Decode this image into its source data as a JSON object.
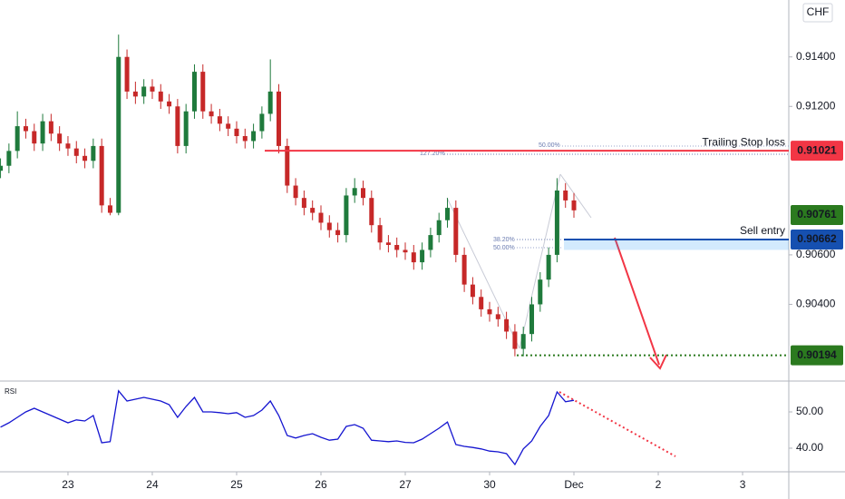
{
  "chart_data": {
    "type": "candlestick",
    "currency": "CHF",
    "up_color": "#1f7a3c",
    "down_color": "#c62828",
    "xlim": [
      -0.806,
      8.548
    ],
    "xticks": [
      {
        "value": 0,
        "label": "23"
      },
      {
        "value": 1,
        "label": "24"
      },
      {
        "value": 2,
        "label": "25"
      },
      {
        "value": 3,
        "label": "26"
      },
      {
        "value": 4,
        "label": "27"
      },
      {
        "value": 5,
        "label": "30"
      },
      {
        "value": 6,
        "label": "Dec"
      },
      {
        "value": 7,
        "label": "2"
      },
      {
        "value": 8,
        "label": "3"
      }
    ],
    "ylim": [
      0.9009,
      0.9163
    ],
    "yticks": [
      {
        "value": 0.914,
        "label": "0.91400"
      },
      {
        "value": 0.912,
        "label": "0.91200"
      },
      {
        "value": 0.906,
        "label": "0.90600"
      },
      {
        "value": 0.904,
        "label": "0.90400"
      }
    ],
    "x": [
      -0.8,
      -0.7,
      -0.6,
      -0.5,
      -0.4,
      -0.3,
      -0.2,
      -0.1,
      0,
      0.1,
      0.2,
      0.3,
      0.4,
      0.5,
      0.6,
      0.7,
      0.8,
      0.9,
      1,
      1.1,
      1.2,
      1.3,
      1.4,
      1.5,
      1.6,
      1.7,
      1.8,
      1.9,
      2,
      2.1,
      2.2,
      2.3,
      2.4,
      2.5,
      2.6,
      2.7,
      2.8,
      2.9,
      3,
      3.1,
      3.2,
      3.3,
      3.4,
      3.5,
      3.6,
      3.7,
      3.8,
      3.9,
      4,
      4.1,
      4.2,
      4.3,
      4.4,
      4.5,
      4.6,
      4.7,
      4.8,
      4.9,
      5,
      5.1,
      5.2,
      5.3,
      5.4,
      5.5,
      5.6,
      5.7,
      5.8,
      5.9,
      6
    ],
    "open": [
      0.9094,
      0.9096,
      0.9102,
      0.9112,
      0.911,
      0.9105,
      0.9114,
      0.9109,
      0.9105,
      0.9103,
      0.91,
      0.9098,
      0.9104,
      0.908,
      0.9077,
      0.914,
      0.9126,
      0.9124,
      0.9128,
      0.9126,
      0.9122,
      0.912,
      0.9104,
      0.9118,
      0.9134,
      0.9118,
      0.9116,
      0.9113,
      0.9111,
      0.9108,
      0.9106,
      0.911,
      0.9117,
      0.9126,
      0.9104,
      0.9088,
      0.9083,
      0.9079,
      0.9077,
      0.9073,
      0.907,
      0.9068,
      0.9084,
      0.9087,
      0.9083,
      0.9072,
      0.9065,
      0.9064,
      0.9062,
      0.9061,
      0.9057,
      0.9062,
      0.9068,
      0.9074,
      0.9079,
      0.906,
      0.9048,
      0.9043,
      0.9038,
      0.9036,
      0.9034,
      0.9029,
      0.9022,
      0.9028,
      0.904,
      0.905,
      0.906,
      0.9086,
      0.9082
    ],
    "high": [
      0.9099,
      0.9105,
      0.9118,
      0.9115,
      0.9113,
      0.9117,
      0.9117,
      0.9112,
      0.9108,
      0.9106,
      0.9103,
      0.9107,
      0.9107,
      0.9083,
      0.9149,
      0.9143,
      0.913,
      0.9131,
      0.9131,
      0.9129,
      0.9125,
      0.9123,
      0.9121,
      0.9137,
      0.9137,
      0.9121,
      0.9119,
      0.9116,
      0.9114,
      0.9111,
      0.9113,
      0.912,
      0.9139,
      0.9129,
      0.9107,
      0.9091,
      0.9086,
      0.9082,
      0.908,
      0.9076,
      0.9073,
      0.9087,
      0.9091,
      0.909,
      0.9086,
      0.9075,
      0.9068,
      0.9067,
      0.9065,
      0.9064,
      0.9065,
      0.9071,
      0.9077,
      0.9083,
      0.9082,
      0.9063,
      0.9051,
      0.9046,
      0.9041,
      0.9039,
      0.9037,
      0.9032,
      0.9031,
      0.9043,
      0.9053,
      0.9063,
      0.9091,
      0.9089,
      0.9085
    ],
    "low": [
      0.9091,
      0.9093,
      0.9099,
      0.9107,
      0.9102,
      0.9102,
      0.9106,
      0.9102,
      0.91,
      0.9097,
      0.9095,
      0.9095,
      0.9077,
      0.9076,
      0.9076,
      0.9123,
      0.9121,
      0.9121,
      0.9123,
      0.9119,
      0.9117,
      0.9101,
      0.9101,
      0.9115,
      0.9115,
      0.9113,
      0.911,
      0.9108,
      0.9105,
      0.9103,
      0.9103,
      0.9107,
      0.9114,
      0.9101,
      0.9085,
      0.908,
      0.9076,
      0.9074,
      0.907,
      0.9067,
      0.9065,
      0.9065,
      0.9081,
      0.908,
      0.9069,
      0.9062,
      0.9061,
      0.9059,
      0.9058,
      0.9054,
      0.9054,
      0.9059,
      0.9065,
      0.9071,
      0.9057,
      0.9045,
      0.904,
      0.9035,
      0.9033,
      0.9031,
      0.9026,
      0.9019,
      0.9019,
      0.9025,
      0.9037,
      0.9047,
      0.9057,
      0.9079,
      0.9075
    ],
    "close": [
      0.9096,
      0.9102,
      0.9112,
      0.911,
      0.9105,
      0.9114,
      0.9109,
      0.9105,
      0.9103,
      0.91,
      0.9098,
      0.9104,
      0.908,
      0.9077,
      0.914,
      0.9126,
      0.9124,
      0.9128,
      0.9126,
      0.9122,
      0.912,
      0.9104,
      0.9118,
      0.9134,
      0.9118,
      0.9116,
      0.9113,
      0.9111,
      0.9108,
      0.9106,
      0.911,
      0.9117,
      0.9126,
      0.9104,
      0.9088,
      0.9083,
      0.9079,
      0.9077,
      0.9073,
      0.907,
      0.9068,
      0.9084,
      0.9087,
      0.9083,
      0.9072,
      0.9065,
      0.9064,
      0.9062,
      0.9061,
      0.9057,
      0.9062,
      0.9068,
      0.9074,
      0.9079,
      0.906,
      0.9048,
      0.9043,
      0.9038,
      0.9036,
      0.9034,
      0.9029,
      0.9022,
      0.9028,
      0.904,
      0.905,
      0.906,
      0.9086,
      0.9082,
      0.9078
    ],
    "levels": [
      {
        "name": "Trailing Stop loss",
        "value": 0.91021,
        "value_label": "0.91021",
        "color": "#f23645"
      },
      {
        "name": "Sell entry",
        "value": 0.90662,
        "value_label": "0.90662",
        "color": "#1650b0"
      },
      {
        "value": 0.90194,
        "value_label": "0.90194",
        "color": "#2b7a1f"
      },
      {
        "value": 0.90761,
        "value_label": "0.90761",
        "color": "#2b7a1f"
      }
    ],
    "fib_labels": [
      "127.20%",
      "50.00%",
      "38.20%",
      "50.00%"
    ],
    "rsi": {
      "label": "RSI",
      "color": "#1515d0",
      "ylim": [
        33.5,
        58.5
      ],
      "yticks": [
        {
          "value": 50,
          "label": "50.00"
        },
        {
          "value": 40,
          "label": "40.00"
        }
      ],
      "values": [
        45.8,
        47,
        48.5,
        50,
        51,
        50,
        49,
        48,
        47,
        47.8,
        47.5,
        49,
        41.5,
        41.8,
        55.8,
        53,
        53.5,
        54,
        53.5,
        53,
        52,
        48.5,
        51.5,
        54,
        50,
        50,
        49.8,
        49.5,
        49.8,
        48.5,
        49,
        50.5,
        53,
        49,
        43.5,
        42.8,
        43.5,
        44,
        43,
        42.2,
        42.5,
        46,
        46.5,
        45.5,
        42.2,
        42,
        41.8,
        42,
        41.6,
        41.5,
        42.5,
        44,
        45.5,
        47.2,
        41,
        40.5,
        40.2,
        39.8,
        39.2,
        39,
        38.5,
        35.5,
        39.8,
        42,
        46,
        49,
        55.5,
        52.8,
        53.2
      ]
    }
  }
}
